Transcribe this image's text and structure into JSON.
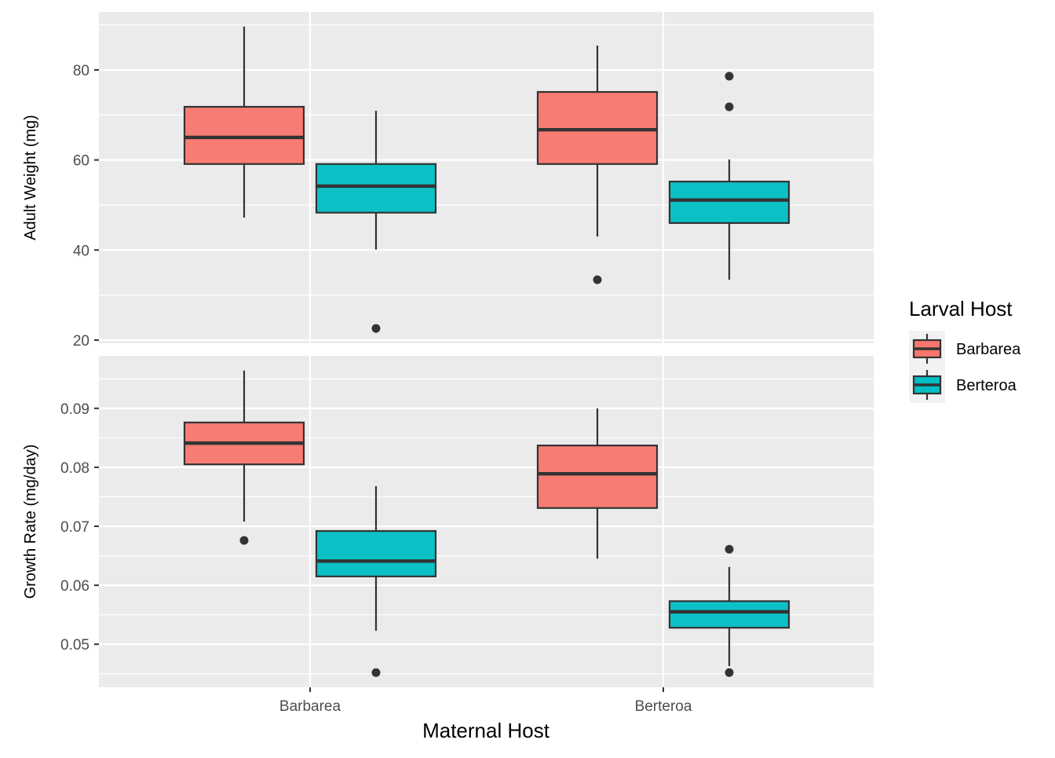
{
  "chart_data": {
    "type": "boxplot",
    "xlabel": "Maternal Host",
    "categories": [
      "Barbarea",
      "Berteroa"
    ],
    "legend": {
      "title": "Larval Host",
      "placement": "right",
      "entries": [
        {
          "name": "Barbarea",
          "color": "#F8766D"
        },
        {
          "name": "Berteroa",
          "color": "#00BFC4"
        }
      ]
    },
    "panels": [
      {
        "ylabel": "Adult Weight (mg)",
        "ylim": [
          19.3,
          92.9
        ],
        "major_ticks": [
          20,
          40,
          60,
          80
        ],
        "tick_labels": [
          "20",
          "40",
          "60",
          "80"
        ],
        "minor_ticks": [
          30,
          50,
          70,
          90
        ],
        "boxes": [
          {
            "maternal": "Barbarea",
            "larval": "Barbarea",
            "whisker_low": 47.2,
            "q1": 59.1,
            "median": 65.0,
            "q3": 71.8,
            "whisker_high": 89.6,
            "outliers": []
          },
          {
            "maternal": "Barbarea",
            "larval": "Berteroa",
            "whisker_low": 40.1,
            "q1": 48.3,
            "median": 54.2,
            "q3": 59.1,
            "whisker_high": 70.9,
            "outliers": [
              22.6
            ]
          },
          {
            "maternal": "Berteroa",
            "larval": "Barbarea",
            "whisker_low": 43.0,
            "q1": 59.1,
            "median": 66.7,
            "q3": 75.1,
            "whisker_high": 85.4,
            "outliers": [
              33.4
            ]
          },
          {
            "maternal": "Berteroa",
            "larval": "Berteroa",
            "whisker_low": 33.4,
            "q1": 46.0,
            "median": 51.1,
            "q3": 55.2,
            "whisker_high": 60.1,
            "outliers": [
              78.6,
              71.8
            ]
          }
        ]
      },
      {
        "ylabel": "Growth Rate (mg/day)",
        "ylim": [
          0.0427,
          0.0989
        ],
        "major_ticks": [
          0.05,
          0.06,
          0.07,
          0.08,
          0.09
        ],
        "tick_labels": [
          "0.05",
          "0.06",
          "0.07",
          "0.08",
          "0.09"
        ],
        "minor_ticks": [
          0.045,
          0.055,
          0.065,
          0.075,
          0.085,
          0.095
        ],
        "boxes": [
          {
            "maternal": "Barbarea",
            "larval": "Barbarea",
            "whisker_low": 0.0708,
            "q1": 0.0805,
            "median": 0.0841,
            "q3": 0.0876,
            "whisker_high": 0.0964,
            "outliers": [
              0.0676
            ]
          },
          {
            "maternal": "Barbarea",
            "larval": "Berteroa",
            "whisker_low": 0.0523,
            "q1": 0.0615,
            "median": 0.0641,
            "q3": 0.0692,
            "whisker_high": 0.0768,
            "outliers": [
              0.0452
            ]
          },
          {
            "maternal": "Berteroa",
            "larval": "Barbarea",
            "whisker_low": 0.0645,
            "q1": 0.0731,
            "median": 0.0789,
            "q3": 0.0837,
            "whisker_high": 0.09,
            "outliers": []
          },
          {
            "maternal": "Berteroa",
            "larval": "Berteroa",
            "whisker_low": 0.0463,
            "q1": 0.0528,
            "median": 0.0555,
            "q3": 0.0573,
            "whisker_high": 0.0631,
            "outliers": [
              0.0661,
              0.0452
            ]
          }
        ]
      }
    ]
  }
}
